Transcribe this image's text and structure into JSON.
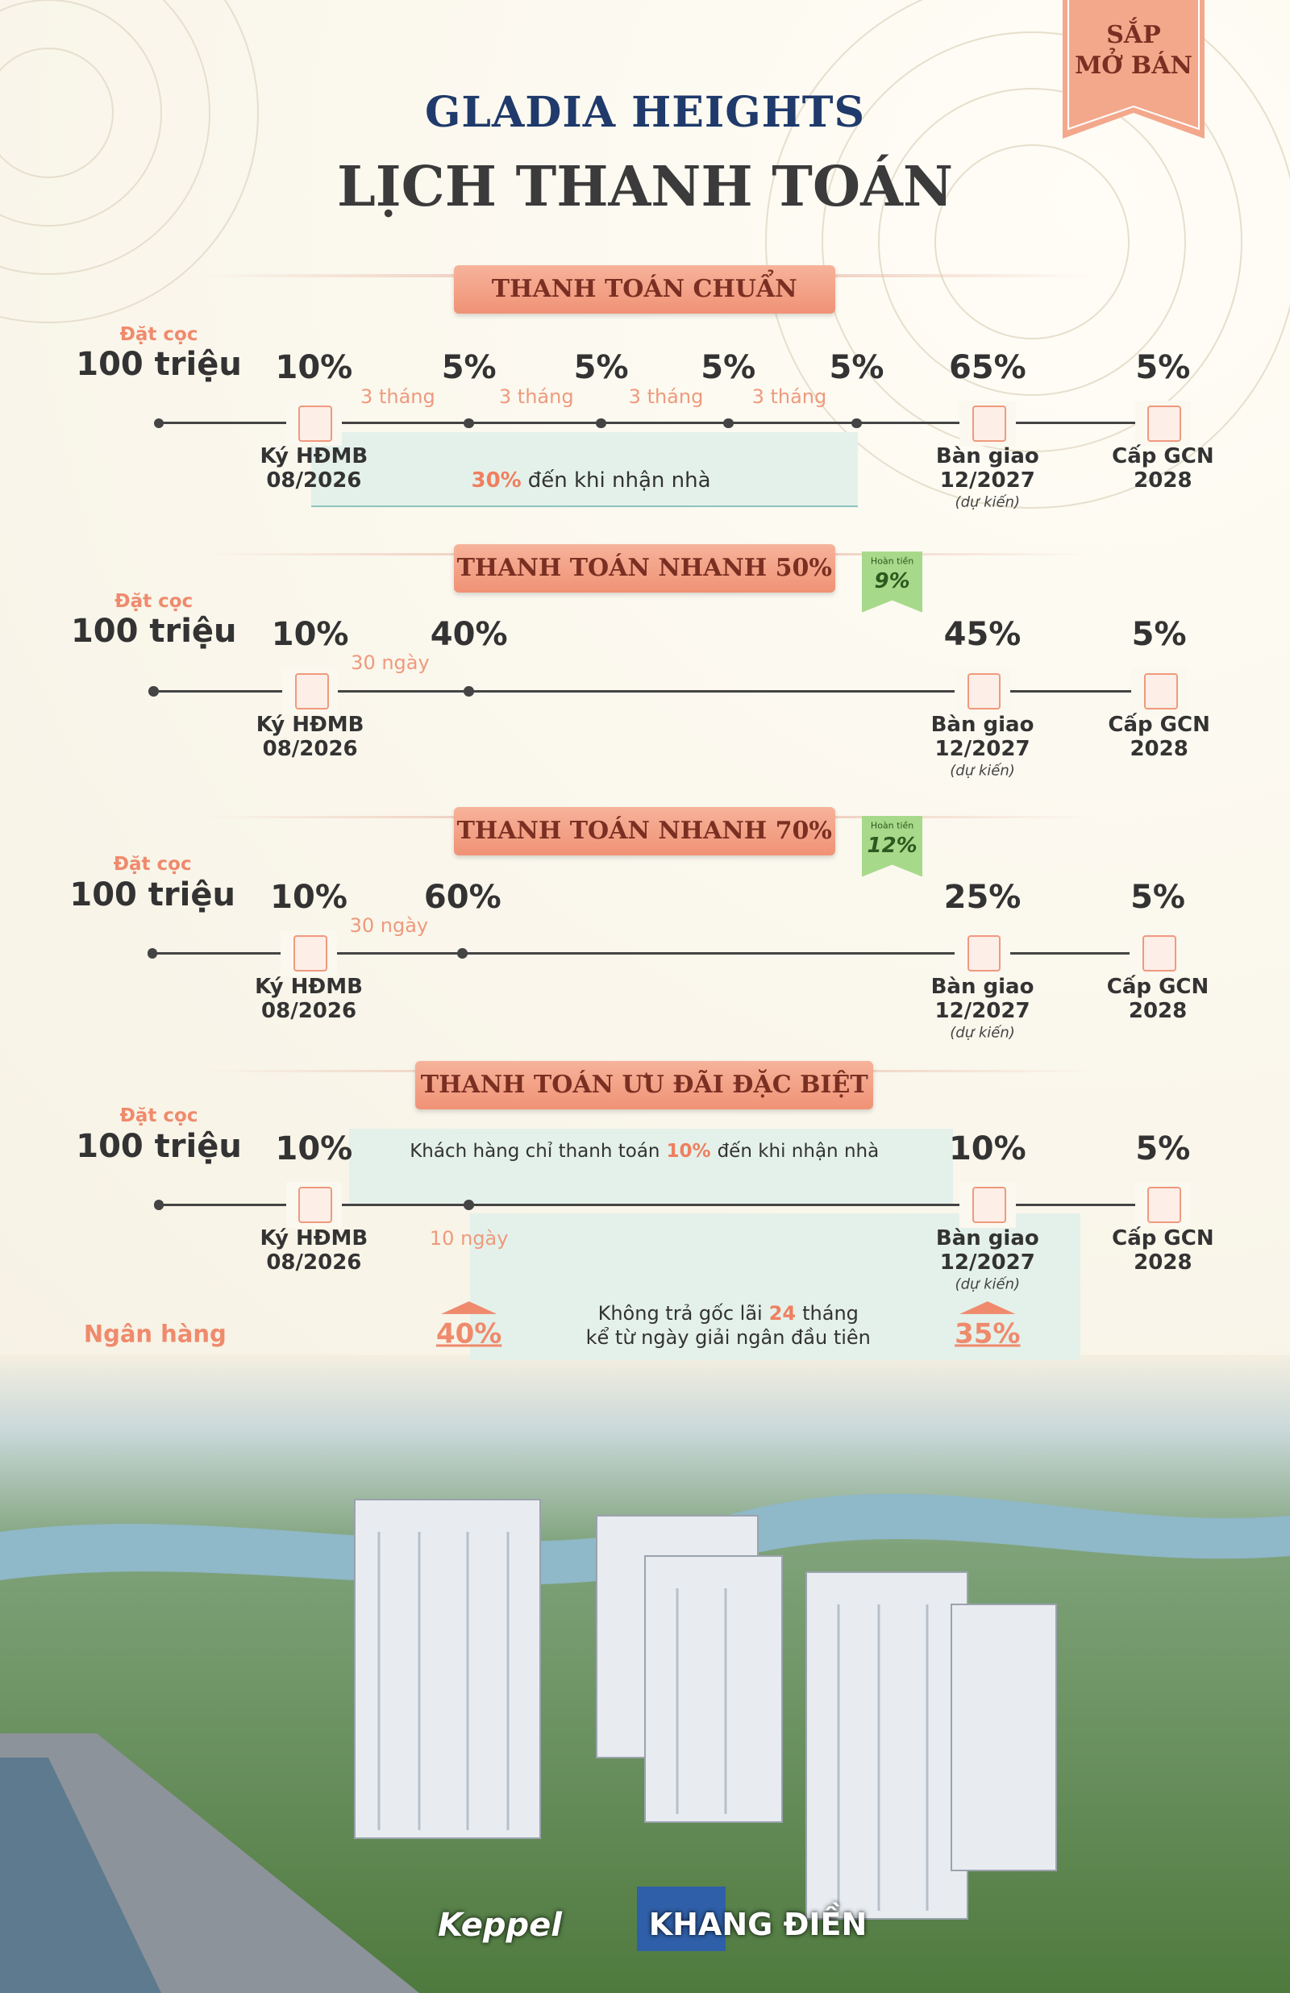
{
  "badge": [
    "SẮP",
    "MỞ BÁN"
  ],
  "brand": "GLADIA HEIGHTS",
  "title": "LỊCH THANH TOÁN",
  "plans": [
    {
      "title": "THANH TOÁN CHUẨN",
      "deposit": {
        "label": "Đặt cọc",
        "amount": "100 triệu"
      },
      "stops": [
        {
          "percent": "10%",
          "label": "Ký HĐMB",
          "date": "08/2026"
        },
        {
          "percent": "5%"
        },
        {
          "percent": "5%"
        },
        {
          "percent": "5%"
        },
        {
          "percent": "5%"
        },
        {
          "percent": "65%",
          "label": "Bàn giao",
          "date": "12/2027",
          "note": "(dự kiến)"
        },
        {
          "percent": "5%",
          "label": "Cấp GCN",
          "date": "2028"
        }
      ],
      "intervals": [
        "3 tháng",
        "3 tháng",
        "3 tháng",
        "3 tháng"
      ],
      "note": {
        "highlight": "30%",
        "text": "đến khi nhận nhà"
      }
    },
    {
      "title": "THANH TOÁN NHANH 50%",
      "deposit": {
        "label": "Đặt cọc",
        "amount": "100 triệu"
      },
      "refund": {
        "label": "Hoàn tiền",
        "value": "9%"
      },
      "stops": [
        {
          "percent": "10%",
          "label": "Ký HĐMB",
          "date": "08/2026"
        },
        {
          "percent": "40%"
        },
        {
          "percent": "45%",
          "label": "Bàn giao",
          "date": "12/2027",
          "note": "(dự kiến)"
        },
        {
          "percent": "5%",
          "label": "Cấp GCN",
          "date": "2028"
        }
      ],
      "intervals": [
        "30 ngày"
      ]
    },
    {
      "title": "THANH TOÁN NHANH 70%",
      "deposit": {
        "label": "Đặt cọc",
        "amount": "100 triệu"
      },
      "refund": {
        "label": "Hoàn tiền",
        "value": "12%"
      },
      "stops": [
        {
          "percent": "10%",
          "label": "Ký HĐMB",
          "date": "08/2026"
        },
        {
          "percent": "60%"
        },
        {
          "percent": "25%",
          "label": "Bàn giao",
          "date": "12/2027",
          "note": "(dự kiến)"
        },
        {
          "percent": "5%",
          "label": "Cấp GCN",
          "date": "2028"
        }
      ],
      "intervals": [
        "30 ngày"
      ]
    },
    {
      "title": "THANH TOÁN ƯU ĐÃI ĐẶC BIỆT",
      "deposit": {
        "label": "Đặt cọc",
        "amount": "100 triệu"
      },
      "stops": [
        {
          "percent": "10%",
          "label": "Ký HĐMB",
          "date": "08/2026"
        },
        {
          "bank_percent": "40%"
        },
        {
          "percent": "10%",
          "label": "Bàn giao",
          "date": "12/2027",
          "note": "(dự kiến)",
          "bank_percent": "35%"
        },
        {
          "percent": "5%",
          "label": "Cấp GCN",
          "date": "2028"
        }
      ],
      "intervals": [
        "10 ngày"
      ],
      "note": {
        "before": "Khách hàng chỉ thanh toán",
        "highlight": "10%",
        "text": "đến khi nhận nhà"
      },
      "bank": {
        "label": "Ngân hàng",
        "before": "Không trả gốc lãi",
        "highlight": "24",
        "after": "tháng",
        "line2": "kể từ ngày giải ngân đầu tiên"
      }
    }
  ],
  "footer": {
    "logos": [
      "Keppel",
      "KHANG ĐIỀN"
    ]
  }
}
